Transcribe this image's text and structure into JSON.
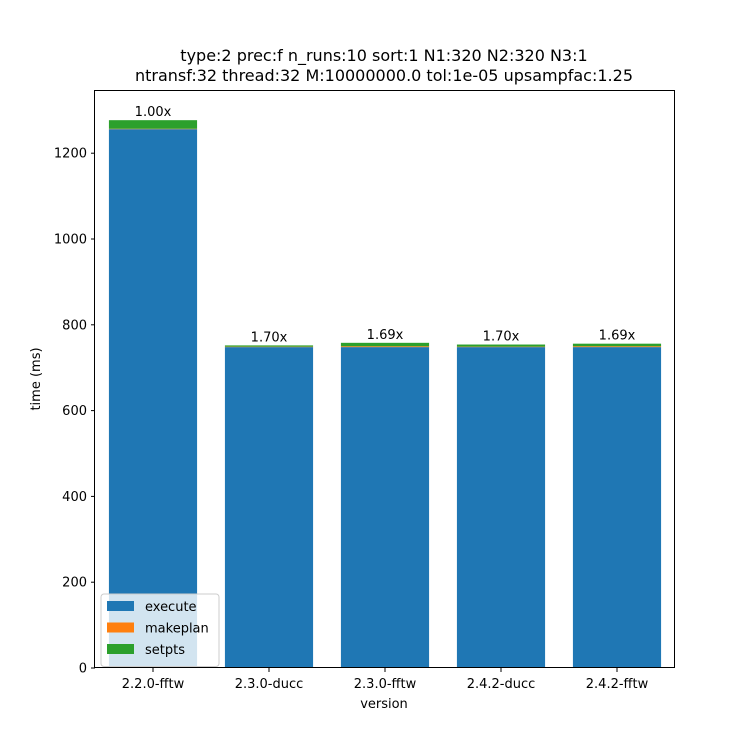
{
  "chart_data": {
    "type": "bar",
    "stacked": true,
    "title": "type:2 prec:f n_runs:10 sort:1 N1:320 N2:320 N3:1",
    "subtitle": "ntransf:32 thread:32 M:10000000.0 tol:1e-05 upsampfac:1.25",
    "xlabel": "version",
    "ylabel": "time (ms)",
    "categories": [
      "2.2.0-fftw",
      "2.3.0-ducc",
      "2.3.0-fftw",
      "2.4.2-ducc",
      "2.4.2-fftw"
    ],
    "series": [
      {
        "name": "execute",
        "color": "#1f77b4",
        "values": [
          1256,
          748,
          748,
          748,
          748
        ]
      },
      {
        "name": "makeplan",
        "color": "#ff7f0e",
        "values": [
          1,
          1,
          2,
          1,
          2
        ]
      },
      {
        "name": "setpts",
        "color": "#2ca02c",
        "values": [
          20,
          3,
          8,
          5,
          6
        ]
      }
    ],
    "data_labels": [
      "1.00x",
      "1.70x",
      "1.69x",
      "1.70x",
      "1.69x"
    ],
    "ylim": [
      0,
      1345
    ],
    "yticks": [
      0,
      200,
      400,
      600,
      800,
      1000,
      1200
    ],
    "grid": false,
    "legend_position": "lower-left"
  }
}
